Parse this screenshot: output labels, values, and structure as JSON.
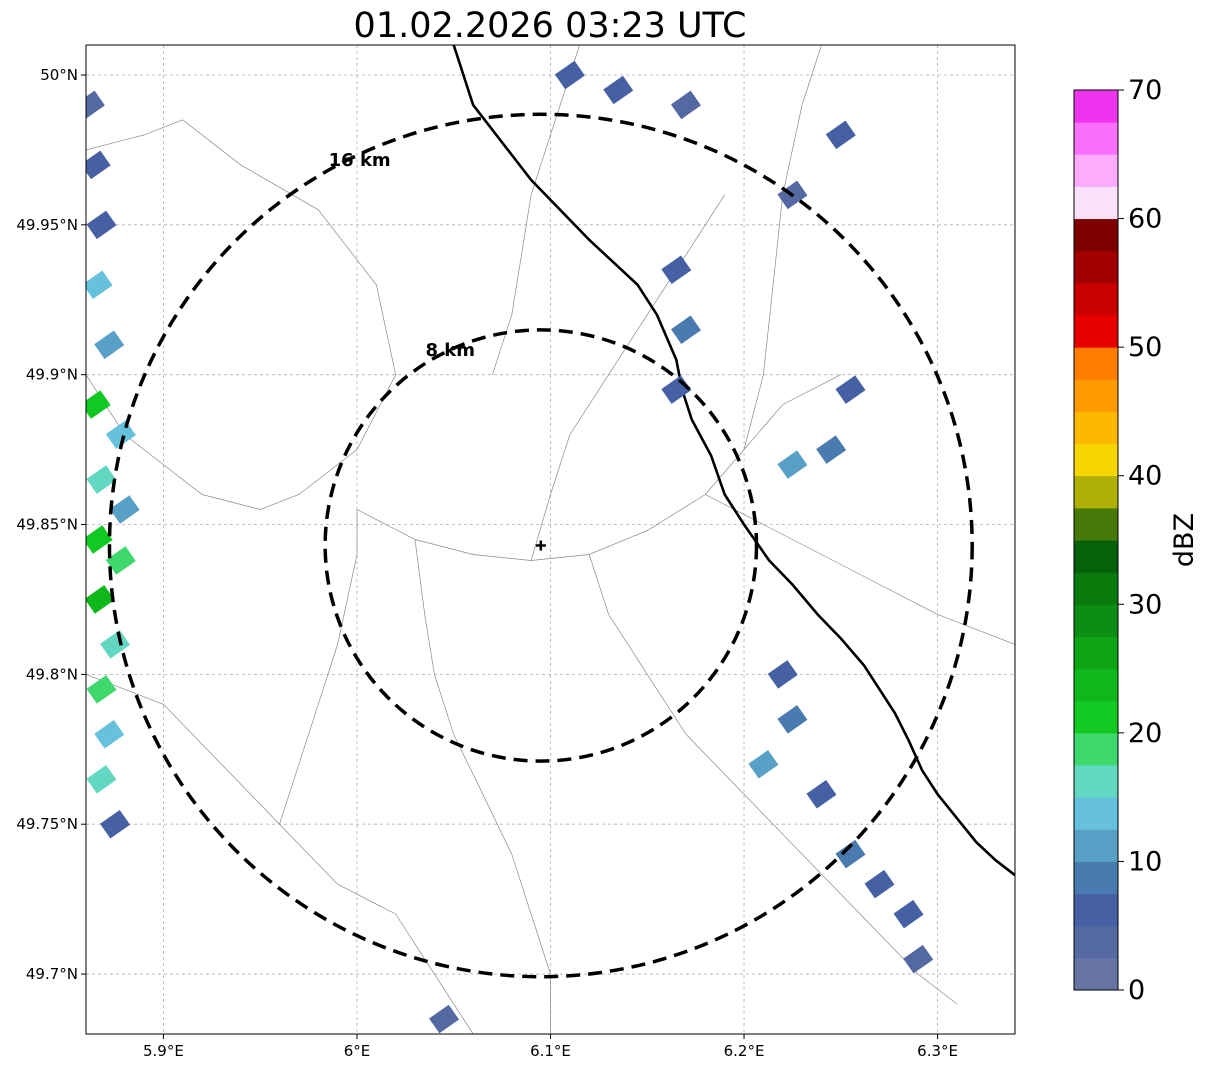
{
  "title": "01.02.2026 03:23 UTC",
  "map": {
    "projection": "PlateCarree",
    "lon_range": [
      5.86,
      6.34
    ],
    "lat_range": [
      49.68,
      50.01
    ],
    "x_ticks": [
      {
        "value": 5.9,
        "label": "5.9°E"
      },
      {
        "value": 6.0,
        "label": "6°E"
      },
      {
        "value": 6.1,
        "label": "6.1°E"
      },
      {
        "value": 6.2,
        "label": "6.2°E"
      },
      {
        "value": 6.3,
        "label": "6.3°E"
      }
    ],
    "y_ticks": [
      {
        "value": 50.0,
        "label": "50°N"
      },
      {
        "value": 49.95,
        "label": "49.95°N"
      },
      {
        "value": 49.9,
        "label": "49.9°N"
      },
      {
        "value": 49.85,
        "label": "49.85°N"
      },
      {
        "value": 49.8,
        "label": "49.8°N"
      },
      {
        "value": 49.75,
        "label": "49.75°N"
      },
      {
        "value": 49.7,
        "label": "49.7°N"
      }
    ],
    "grid": true,
    "radar_site": {
      "lon": 6.095,
      "lat": 49.843
    },
    "range_rings": [
      {
        "radius_km": 8,
        "label": "8 km"
      },
      {
        "radius_km": 16,
        "label": "16 km"
      }
    ],
    "country_borders": [
      [
        [
          6.05,
          50.01
        ],
        [
          6.06,
          49.99
        ],
        [
          6.09,
          49.965
        ],
        [
          6.12,
          49.945
        ],
        [
          6.145,
          49.93
        ],
        [
          6.155,
          49.92
        ],
        [
          6.165,
          49.905
        ],
        [
          6.168,
          49.895
        ],
        [
          6.173,
          49.885
        ],
        [
          6.183,
          49.873
        ],
        [
          6.19,
          49.86
        ],
        [
          6.2,
          49.85
        ],
        [
          6.213,
          49.838
        ],
        [
          6.225,
          49.83
        ],
        [
          6.238,
          49.82
        ],
        [
          6.25,
          49.812
        ],
        [
          6.262,
          49.803
        ],
        [
          6.27,
          49.795
        ],
        [
          6.278,
          49.787
        ],
        [
          6.285,
          49.778
        ],
        [
          6.292,
          49.768
        ],
        [
          6.3,
          49.76
        ],
        [
          6.31,
          49.752
        ],
        [
          6.32,
          49.744
        ],
        [
          6.33,
          49.738
        ],
        [
          6.34,
          49.733
        ]
      ]
    ],
    "regional_boundaries": [
      [
        [
          5.86,
          49.975
        ],
        [
          5.89,
          49.98
        ],
        [
          5.91,
          49.985
        ],
        [
          5.94,
          49.97
        ],
        [
          5.98,
          49.955
        ],
        [
          6.01,
          49.93
        ],
        [
          6.02,
          49.9
        ],
        [
          6.0,
          49.875
        ],
        [
          5.97,
          49.86
        ],
        [
          5.95,
          49.855
        ],
        [
          5.92,
          49.86
        ],
        [
          5.9,
          49.87
        ],
        [
          5.88,
          49.88
        ],
        [
          5.86,
          49.9
        ]
      ],
      [
        [
          6.0,
          49.855
        ],
        [
          6.03,
          49.845
        ],
        [
          6.06,
          49.84
        ],
        [
          6.09,
          49.838
        ],
        [
          6.12,
          49.84
        ],
        [
          6.15,
          49.848
        ],
        [
          6.18,
          49.86
        ],
        [
          6.2,
          49.875
        ],
        [
          6.22,
          49.89
        ],
        [
          6.25,
          49.9
        ]
      ],
      [
        [
          6.03,
          49.845
        ],
        [
          6.035,
          49.82
        ],
        [
          6.04,
          49.8
        ],
        [
          6.05,
          49.78
        ],
        [
          6.065,
          49.76
        ],
        [
          6.08,
          49.74
        ],
        [
          6.09,
          49.72
        ],
        [
          6.1,
          49.7
        ],
        [
          6.1,
          49.68
        ]
      ],
      [
        [
          6.09,
          49.838
        ],
        [
          6.1,
          49.86
        ],
        [
          6.11,
          49.88
        ],
        [
          6.13,
          49.9
        ],
        [
          6.15,
          49.92
        ],
        [
          6.17,
          49.94
        ],
        [
          6.19,
          49.96
        ]
      ],
      [
        [
          5.86,
          49.8
        ],
        [
          5.9,
          49.79
        ],
        [
          5.93,
          49.77
        ],
        [
          5.96,
          49.75
        ],
        [
          5.99,
          49.73
        ],
        [
          6.02,
          49.72
        ],
        [
          6.04,
          49.7
        ],
        [
          6.06,
          49.68
        ]
      ],
      [
        [
          6.12,
          49.84
        ],
        [
          6.13,
          49.82
        ],
        [
          6.15,
          49.8
        ],
        [
          6.17,
          49.78
        ],
        [
          6.2,
          49.76
        ],
        [
          6.23,
          49.74
        ],
        [
          6.26,
          49.72
        ],
        [
          6.29,
          49.7
        ],
        [
          6.31,
          49.69
        ]
      ],
      [
        [
          6.18,
          49.86
        ],
        [
          6.21,
          49.85
        ],
        [
          6.24,
          49.84
        ],
        [
          6.27,
          49.83
        ],
        [
          6.3,
          49.82
        ],
        [
          6.34,
          49.81
        ]
      ],
      [
        [
          6.07,
          49.9
        ],
        [
          6.08,
          49.92
        ],
        [
          6.085,
          49.94
        ],
        [
          6.09,
          49.96
        ],
        [
          6.1,
          49.98
        ],
        [
          6.11,
          50.0
        ],
        [
          6.115,
          50.01
        ]
      ],
      [
        [
          5.96,
          49.75
        ],
        [
          5.975,
          49.78
        ],
        [
          5.99,
          49.81
        ],
        [
          6.0,
          49.84
        ],
        [
          6.0,
          49.855
        ]
      ],
      [
        [
          6.2,
          49.875
        ],
        [
          6.21,
          49.9
        ],
        [
          6.215,
          49.93
        ],
        [
          6.22,
          49.96
        ],
        [
          6.23,
          49.99
        ],
        [
          6.24,
          50.01
        ]
      ]
    ]
  },
  "precipitation": {
    "units": "dBZ",
    "cells": [
      {
        "lon": 5.862,
        "lat": 49.99,
        "dbz": 4
      },
      {
        "lon": 5.865,
        "lat": 49.97,
        "dbz": 6
      },
      {
        "lon": 5.868,
        "lat": 49.95,
        "dbz": 5
      },
      {
        "lon": 5.866,
        "lat": 49.93,
        "dbz": 14
      },
      {
        "lon": 5.872,
        "lat": 49.91,
        "dbz": 12
      },
      {
        "lon": 5.865,
        "lat": 49.89,
        "dbz": 20
      },
      {
        "lon": 5.878,
        "lat": 49.88,
        "dbz": 13
      },
      {
        "lon": 5.868,
        "lat": 49.865,
        "dbz": 16
      },
      {
        "lon": 5.88,
        "lat": 49.855,
        "dbz": 11
      },
      {
        "lon": 5.866,
        "lat": 49.845,
        "dbz": 22
      },
      {
        "lon": 5.878,
        "lat": 49.838,
        "dbz": 18
      },
      {
        "lon": 5.867,
        "lat": 49.825,
        "dbz": 24
      },
      {
        "lon": 5.875,
        "lat": 49.81,
        "dbz": 15
      },
      {
        "lon": 5.868,
        "lat": 49.795,
        "dbz": 19
      },
      {
        "lon": 5.872,
        "lat": 49.78,
        "dbz": 13
      },
      {
        "lon": 5.868,
        "lat": 49.765,
        "dbz": 16
      },
      {
        "lon": 5.875,
        "lat": 49.75,
        "dbz": 7
      },
      {
        "lon": 6.11,
        "lat": 50.0,
        "dbz": 5
      },
      {
        "lon": 6.135,
        "lat": 49.995,
        "dbz": 6
      },
      {
        "lon": 6.165,
        "lat": 49.935,
        "dbz": 7
      },
      {
        "lon": 6.17,
        "lat": 49.915,
        "dbz": 8
      },
      {
        "lon": 6.165,
        "lat": 49.895,
        "dbz": 5
      },
      {
        "lon": 6.225,
        "lat": 49.96,
        "dbz": 4
      },
      {
        "lon": 6.255,
        "lat": 49.895,
        "dbz": 6
      },
      {
        "lon": 6.245,
        "lat": 49.875,
        "dbz": 9
      },
      {
        "lon": 6.225,
        "lat": 49.87,
        "dbz": 11
      },
      {
        "lon": 6.22,
        "lat": 49.8,
        "dbz": 6
      },
      {
        "lon": 6.225,
        "lat": 49.785,
        "dbz": 8
      },
      {
        "lon": 6.21,
        "lat": 49.77,
        "dbz": 12
      },
      {
        "lon": 6.24,
        "lat": 49.76,
        "dbz": 7
      },
      {
        "lon": 6.255,
        "lat": 49.74,
        "dbz": 9
      },
      {
        "lon": 6.27,
        "lat": 49.73,
        "dbz": 6
      },
      {
        "lon": 6.285,
        "lat": 49.72,
        "dbz": 5
      },
      {
        "lon": 6.29,
        "lat": 49.705,
        "dbz": 4
      },
      {
        "lon": 6.045,
        "lat": 49.685,
        "dbz": 3
      },
      {
        "lon": 6.17,
        "lat": 49.99,
        "dbz": 4
      },
      {
        "lon": 6.25,
        "lat": 49.98,
        "dbz": 5
      }
    ]
  },
  "colorbar": {
    "label": "dBZ",
    "min": 0,
    "max": 70,
    "step": 2.5,
    "tick_labels": [
      "0",
      "10",
      "20",
      "30",
      "40",
      "50",
      "60",
      "70"
    ],
    "colors": [
      "#6674a6",
      "#5468a2",
      "#4561a4",
      "#4a7bb0",
      "#58a0c6",
      "#66c1dc",
      "#62d7c1",
      "#3fd86d",
      "#12c822",
      "#0fb81a",
      "#0ea515",
      "#0b8e12",
      "#097a0c",
      "#05620a",
      "#457a08",
      "#aeaf08",
      "#f8d400",
      "#ffb800",
      "#ff9a00",
      "#ff7e00",
      "#e80000",
      "#c80000",
      "#a30000",
      "#7e0000",
      "#fbe0fc",
      "#fbacfb",
      "#fa70fa",
      "#ef34ef"
    ]
  }
}
